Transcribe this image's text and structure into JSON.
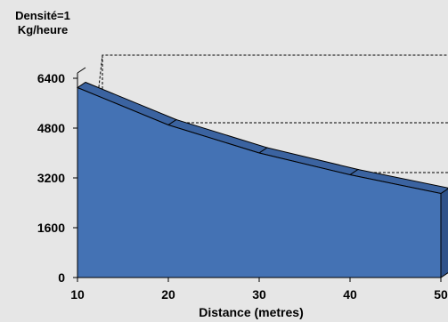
{
  "chart_data": {
    "type": "area",
    "title_lines": [
      "Densité=1",
      "Kg/heure"
    ],
    "xlabel": "Distance (metres)",
    "ylabel": "",
    "x": [
      10,
      20,
      30,
      40,
      50
    ],
    "y": [
      6100,
      4900,
      4000,
      3300,
      2700
    ],
    "x_ticks": [
      "10",
      "20",
      "30",
      "40",
      "50"
    ],
    "y_ticks": [
      "0",
      "1600",
      "3200",
      "4800",
      "6400"
    ],
    "xlim": [
      10,
      50
    ],
    "ylim": [
      0,
      6400
    ],
    "gridlines_y": [
      4800,
      3200
    ],
    "legend": "none",
    "colors": {
      "fill_front": "#4472b4",
      "fill_top": "#3b63a0",
      "fill_side": "#2f528a",
      "floor": "#9a9a9a",
      "background": "#e6e6e6"
    }
  }
}
